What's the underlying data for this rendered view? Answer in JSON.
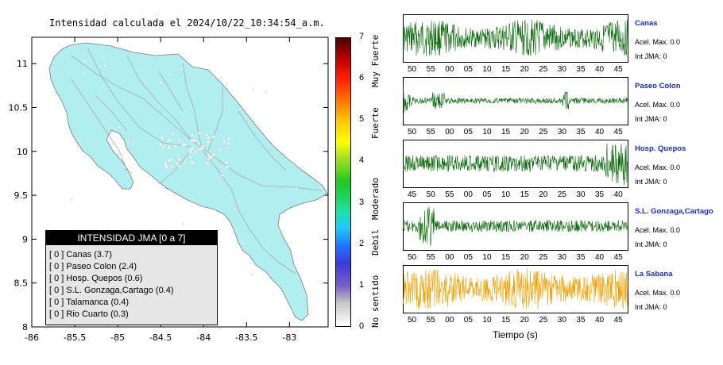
{
  "map": {
    "title": "Intensidad calculada el 2024/10/22_10:34:54_a.m.",
    "x_ticks": [
      "-86",
      "-85.5",
      "-85",
      "-84.5",
      "-84",
      "-83.5",
      "-83"
    ],
    "y_ticks": [
      "11",
      "10.5",
      "10",
      "9.5",
      "9",
      "8.5",
      "8"
    ]
  },
  "chart_data": {
    "type": "map",
    "title": "Intensidad calculada el 2024/10/22_10:34:54_a.m.",
    "xlim": [
      -86,
      -82.55
    ],
    "ylim": [
      8,
      11.3
    ],
    "x_ticks": [
      -86,
      -85.5,
      -85,
      -84.5,
      -84,
      -83.5,
      -83
    ],
    "y_ticks": [
      8,
      8.5,
      9,
      9.5,
      10,
      10.5,
      11
    ]
  },
  "colorbar": {
    "ticks": [
      "0",
      "1",
      "2",
      "3",
      "4",
      "5",
      "6",
      "7"
    ],
    "labels": [
      "No sentido",
      "Debil",
      "Moderado",
      "Fuerte",
      "Muy Fuerte"
    ]
  },
  "legend": {
    "title": "INTENSIDAD JMA [0 a 7]",
    "items": [
      "[ 0 ] Canas (3.7)",
      "[ 0 ] Paseo Colon (2.4)",
      "[ 0 ] Hosp. Quepos (0.6)",
      "[ 0 ] S.L. Gonzaga,Cartago (0.4)",
      "[ 0 ] Talamanca (0.4)",
      "[ 0 ] Rio Cuarto (0.3)"
    ]
  },
  "stations": [
    {
      "name": "Canas",
      "acel": "Acel. Max. 0.0",
      "int": "Int JMA: 0",
      "color": "#0a6b0a",
      "ticks": [
        "50",
        "55",
        "00",
        "05",
        "10",
        "15",
        "20",
        "25",
        "30",
        "35",
        "40",
        "45"
      ]
    },
    {
      "name": "Paseo Colon",
      "acel": "Acel. Max. 0.0",
      "int": "Int JMA: 0",
      "color": "#0a6b0a",
      "ticks": [
        "50",
        "55",
        "00",
        "05",
        "10",
        "15",
        "20",
        "25",
        "30",
        "35",
        "40",
        "45"
      ]
    },
    {
      "name": "Hosp. Quepos",
      "acel": "Acel. Max. 0.0",
      "int": "Int JMA: 0",
      "color": "#0a6b0a",
      "ticks": [
        "45",
        "50",
        "55",
        "00",
        "05",
        "10",
        "15",
        "20",
        "25",
        "30",
        "35",
        "40"
      ]
    },
    {
      "name": "S.L. Gonzaga,Cartago",
      "acel": "Acel. Max. 0.0",
      "int": "Int JMA: 0",
      "color": "#0a6b0a",
      "ticks": [
        "50",
        "55",
        "00",
        "05",
        "10",
        "15",
        "20",
        "25",
        "30",
        "35",
        "40",
        "45"
      ]
    },
    {
      "name": "La Sabana",
      "acel": "Acel. Max. 0.0",
      "int": "Int JMA: 0",
      "color": "#f0a000",
      "ticks": [
        "50",
        "55",
        "00",
        "05",
        "10",
        "15",
        "20",
        "25",
        "30",
        "35",
        "40",
        "45"
      ]
    }
  ],
  "xlabel": "Tiempo (s)"
}
